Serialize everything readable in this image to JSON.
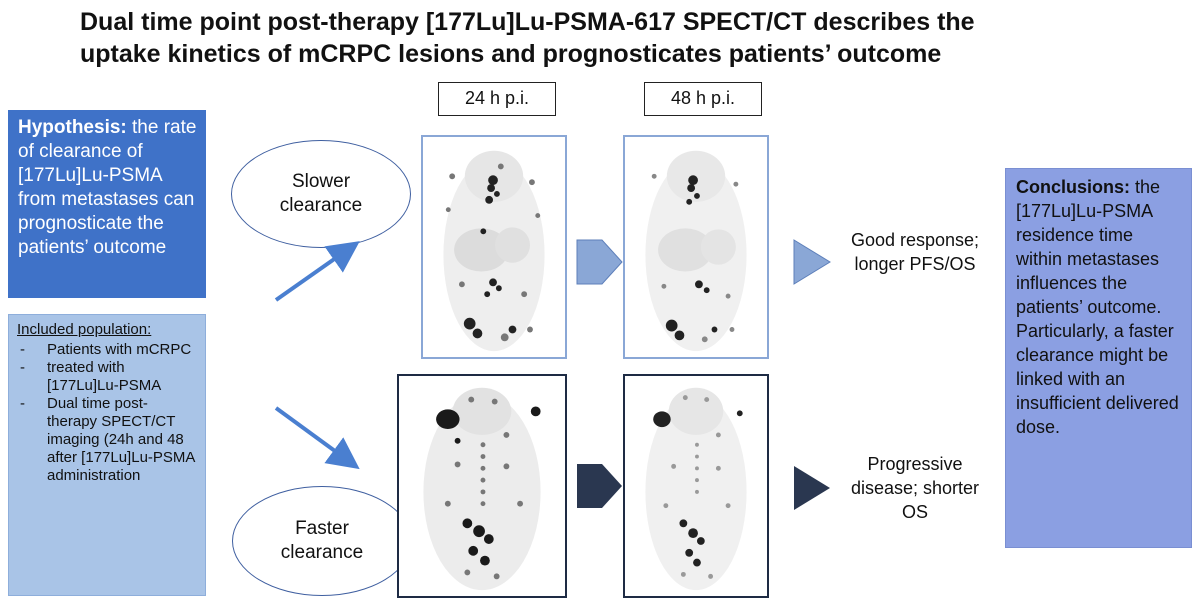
{
  "title": {
    "line1": "Dual time point post-therapy [177Lu]Lu-PSMA-617  SPECT/CT describes the",
    "line2": "uptake kinetics of mCRPC lesions and prognosticates patients’ outcome"
  },
  "hypothesis": {
    "lead": "Hypothesis:",
    "body": " the rate of clearance of [177Lu]Lu-PSMA from metastases can prognosticate the patients’ outcome"
  },
  "population": {
    "heading": "Included population:",
    "items": [
      "Patients with mCRPC",
      "treated with [177Lu]Lu-PSMA",
      "Dual time post-therapy  SPECT/CT imaging (24h and 48 after [177Lu]Lu-PSMA administration"
    ]
  },
  "timepoints": {
    "t1": "24 h p.i.",
    "t2": "48 h p.i."
  },
  "groups": {
    "slow": {
      "label": "Slower clearance",
      "outcome": "Good response; longer PFS/OS",
      "color": "#8aa7d6"
    },
    "fast": {
      "label": "Faster clearance",
      "outcome": "Progressive disease; shorter OS",
      "color": "#2a3750"
    }
  },
  "conclusions": {
    "lead": "Conclusions:",
    "body": " the [177Lu]Lu-PSMA residence time within metastases influences the patients’ outcome. Particularly, a faster clearance might be linked with an insufficient delivered dose."
  },
  "colors": {
    "hypothesis_bg": "#3f72c8",
    "population_bg": "#a9c4e7",
    "conclusions_bg": "#8b9fe2",
    "arrow": "#4a7fd0"
  }
}
